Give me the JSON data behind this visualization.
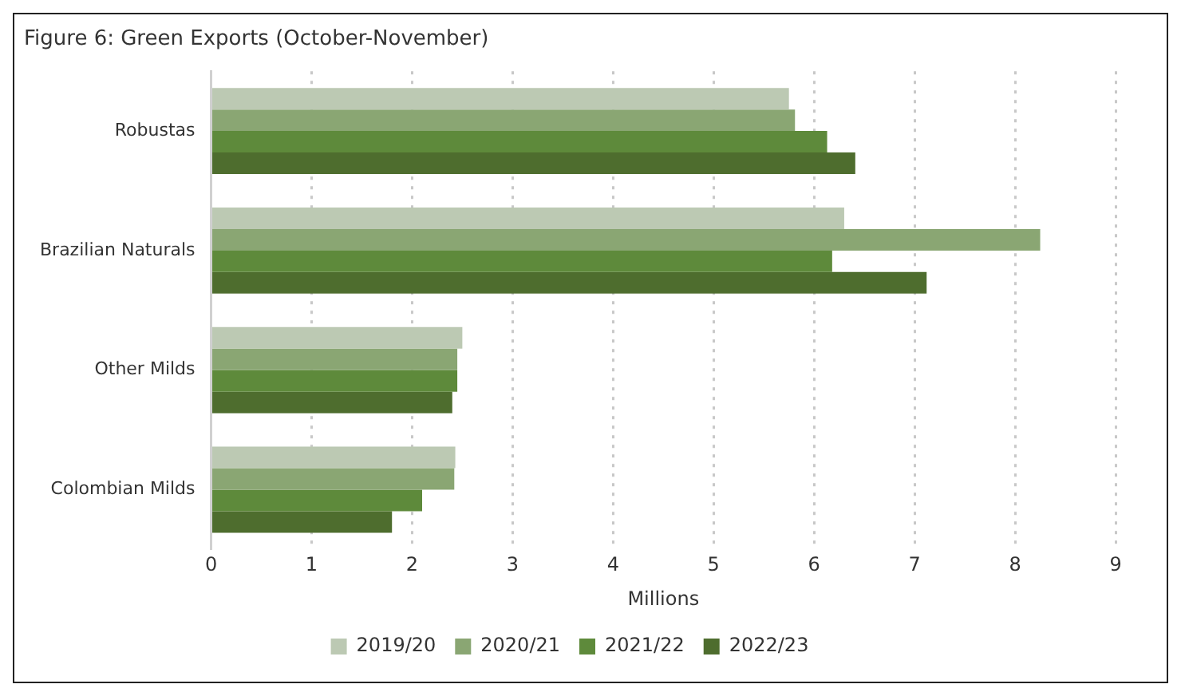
{
  "chart_data": {
    "type": "bar",
    "orientation": "horizontal",
    "title": "Figure 6: Green Exports (October-November)",
    "xlabel": "Millions",
    "categories": [
      "Robustas",
      "Brazilian Naturals",
      "Other Milds",
      "Colombian Milds"
    ],
    "series": [
      {
        "name": "2019/20",
        "color": "#bcc9b3",
        "values": [
          5.75,
          6.3,
          2.5,
          2.43
        ]
      },
      {
        "name": "2020/21",
        "color": "#8aa673",
        "values": [
          5.81,
          8.25,
          2.45,
          2.42
        ]
      },
      {
        "name": "2021/22",
        "color": "#5e8a3b",
        "values": [
          6.13,
          6.18,
          2.45,
          2.1
        ]
      },
      {
        "name": "2022/23",
        "color": "#4e6d2e",
        "values": [
          6.41,
          7.12,
          2.4,
          1.8
        ]
      }
    ],
    "xlim": [
      0,
      9
    ],
    "xticks": [
      0,
      1,
      2,
      3,
      4,
      5,
      6,
      7,
      8,
      9
    ],
    "grid": "x",
    "legend": "bottom"
  }
}
